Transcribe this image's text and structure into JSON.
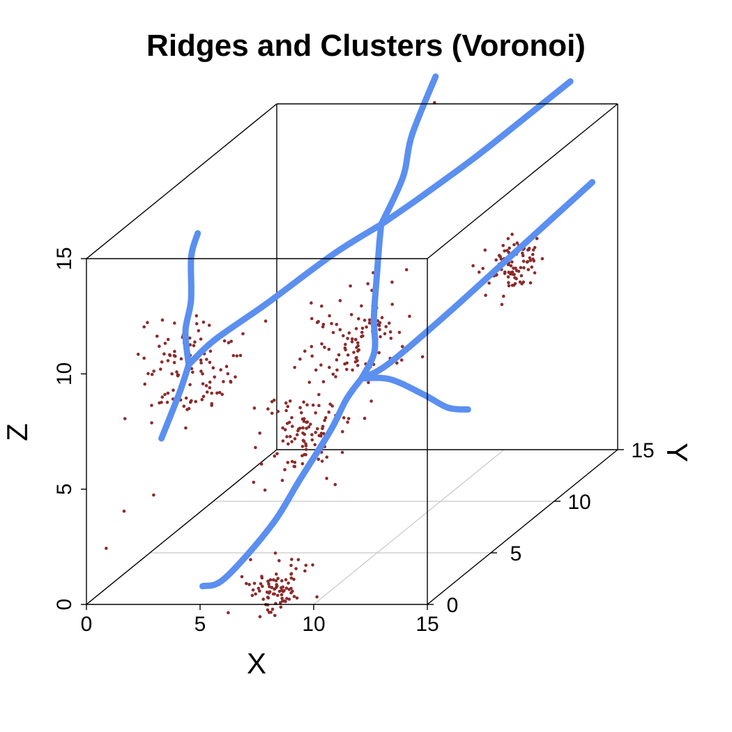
{
  "chart_data": {
    "type": "scatter",
    "projection": "3d-oblique",
    "title": "Ridges and Clusters (Voronoi)",
    "xlabel": "X",
    "ylabel": "Y",
    "zlabel": "Z",
    "xlim": [
      0,
      15
    ],
    "ylim": [
      0,
      15
    ],
    "zlim": [
      0,
      15
    ],
    "x_ticks": [
      "0",
      "5",
      "10",
      "15"
    ],
    "y_ticks": [
      "0",
      "5",
      "10",
      "15"
    ],
    "z_ticks": [
      "0",
      "5",
      "10",
      "15"
    ],
    "grid": "on (floor, along X)",
    "colors": {
      "points": "#8b2b2b",
      "ridges": "#5b8ff0"
    },
    "clusters": [
      {
        "center": [
          4.5,
          0.0,
          10.3
        ],
        "spread": 1.1
      },
      {
        "center": [
          7.5,
          8.0,
          7.8
        ],
        "spread": 1.0
      },
      {
        "center": [
          8.0,
          0.5,
          0.5
        ],
        "spread": 0.6
      },
      {
        "center": [
          5.3,
          7.5,
          4.0
        ],
        "spread": 0.9
      },
      {
        "center": [
          11.0,
          14.0,
          8.5
        ],
        "spread": 0.6
      }
    ],
    "outliers": [
      [
        0.7,
        0.3,
        2.3
      ],
      [
        1.6,
        0.1,
        4.0
      ],
      [
        2.9,
        0.1,
        4.7
      ],
      [
        7.5,
        14.0,
        15.5
      ]
    ],
    "ridges": [
      {
        "points": [
          [
            5.0,
            0.2,
            0.7
          ],
          [
            5.8,
            0.5,
            0.9
          ],
          [
            7.0,
            2.0,
            2.5
          ],
          [
            8.0,
            2.5,
            4.3
          ],
          [
            8.8,
            3.5,
            6.0
          ],
          [
            9.2,
            4.0,
            7.1
          ],
          [
            9.6,
            4.5,
            7.8
          ]
        ]
      },
      {
        "points": [
          [
            9.6,
            4.5,
            7.8
          ],
          [
            9.6,
            5.5,
            8.5
          ],
          [
            9.3,
            6.0,
            9.8
          ],
          [
            8.9,
            7.0,
            11.5
          ],
          [
            8.7,
            7.5,
            12.3
          ],
          [
            8.5,
            8.0,
            12.9
          ]
        ]
      },
      {
        "points": [
          [
            8.5,
            8.0,
            12.9
          ],
          [
            7.5,
            6.0,
            12.5
          ],
          [
            6.0,
            3.5,
            11.5
          ],
          [
            4.8,
            1.5,
            10.8
          ],
          [
            4.5,
            0.0,
            10.4
          ]
        ]
      },
      {
        "points": [
          [
            4.5,
            0.0,
            10.4
          ],
          [
            4.1,
            0.0,
            9.2
          ],
          [
            3.3,
            0.0,
            7.2
          ]
        ]
      },
      {
        "points": [
          [
            4.5,
            0.0,
            10.4
          ],
          [
            4.3,
            0.1,
            11.8
          ],
          [
            4.6,
            0.0,
            13.2
          ],
          [
            4.5,
            0.2,
            15.0
          ],
          [
            4.9,
            0.0,
            16.1
          ]
        ]
      },
      {
        "points": [
          [
            8.5,
            8.0,
            12.9
          ],
          [
            8.9,
            9.0,
            14.5
          ],
          [
            8.9,
            9.7,
            16.0
          ],
          [
            9.5,
            10.5,
            18.2
          ]
        ]
      },
      {
        "points": [
          [
            8.5,
            8.0,
            12.9
          ],
          [
            9.5,
            9.3,
            13.5
          ],
          [
            11.0,
            11.0,
            14.5
          ],
          [
            12.3,
            13.0,
            15.5
          ],
          [
            13.2,
            14.5,
            16.2
          ]
        ]
      },
      {
        "points": [
          [
            9.6,
            4.5,
            7.8
          ],
          [
            10.5,
            5.0,
            8.2
          ],
          [
            12.0,
            7.0,
            9.5
          ],
          [
            13.5,
            10.0,
            11.0
          ],
          [
            15.0,
            13.0,
            12.5
          ]
        ]
      },
      {
        "points": [
          [
            9.6,
            4.5,
            7.8
          ],
          [
            10.3,
            5.5,
            7.3
          ],
          [
            11.2,
            6.5,
            6.2
          ],
          [
            12.0,
            7.0,
            5.4
          ],
          [
            12.6,
            7.5,
            5.1
          ]
        ]
      }
    ]
  }
}
